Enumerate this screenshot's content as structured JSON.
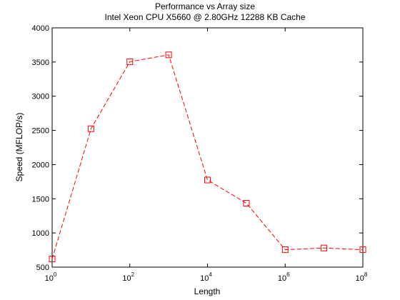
{
  "chart_data": {
    "type": "line",
    "title": "Performance vs Array size",
    "subtitle": "Intel Xeon CPU X5660 @ 2.80GHz 12288 KB Cache",
    "xlabel": "Length",
    "ylabel": "Speed (MFLOP/s)",
    "xscale": "log",
    "xlim": [
      1,
      100000000
    ],
    "ylim": [
      500,
      4000
    ],
    "xticks": [
      {
        "base": "10",
        "exp": "0",
        "value": 1
      },
      {
        "base": "10",
        "exp": "2",
        "value": 100
      },
      {
        "base": "10",
        "exp": "4",
        "value": 10000
      },
      {
        "base": "10",
        "exp": "6",
        "value": 1000000
      },
      {
        "base": "10",
        "exp": "8",
        "value": 100000000
      }
    ],
    "yticks": [
      "500",
      "1000",
      "1500",
      "2000",
      "2500",
      "3000",
      "3500",
      "4000"
    ],
    "grid": false,
    "series": [
      {
        "color": "#ff0000",
        "line_style": "dashed",
        "marker": "square",
        "x": [
          1,
          10,
          100,
          1000,
          10000,
          100000,
          1000000,
          10000000,
          100000000
        ],
        "y": [
          620,
          2525,
          3505,
          3605,
          1775,
          1435,
          755,
          780,
          755
        ]
      }
    ]
  }
}
